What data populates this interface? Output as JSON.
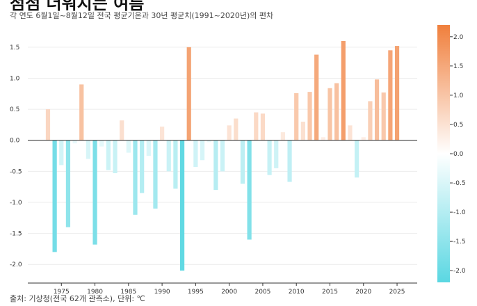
{
  "title": "점점 더워지는 여름",
  "subtitle": "각 연도 6월1일~8월12일 전국 평균기온과 30년 평균치(1991~2020년)의 편차",
  "source": "출처: 기상청(전국 62개 관측소), 단위: ℃",
  "chart_data": {
    "type": "bar",
    "title": "점점 더워지는 여름",
    "subtitle": "각 연도 6월1일~8월12일 전국 평균기온과 30년 평균치(1991~2020년)의 편차",
    "xlabel": "",
    "ylabel": "",
    "unit": "℃",
    "x": [
      1973,
      1974,
      1975,
      1976,
      1977,
      1978,
      1979,
      1980,
      1981,
      1982,
      1983,
      1984,
      1985,
      1986,
      1987,
      1988,
      1989,
      1990,
      1991,
      1992,
      1993,
      1994,
      1995,
      1996,
      1997,
      1998,
      1999,
      2000,
      2001,
      2002,
      2003,
      2004,
      2005,
      2006,
      2007,
      2008,
      2009,
      2010,
      2011,
      2012,
      2013,
      2014,
      2015,
      2016,
      2017,
      2018,
      2019,
      2020,
      2021,
      2022,
      2023,
      2024,
      2025
    ],
    "values": [
      0.5,
      -1.8,
      -0.4,
      -1.4,
      -0.05,
      0.9,
      -0.3,
      -1.68,
      -0.1,
      -0.48,
      -0.53,
      0.32,
      -0.2,
      -1.2,
      -0.85,
      -0.25,
      -1.1,
      0.22,
      -0.5,
      -0.78,
      -2.1,
      1.5,
      -0.43,
      -0.32,
      -0.03,
      -0.8,
      -0.5,
      0.24,
      0.35,
      -0.7,
      -1.6,
      0.45,
      0.43,
      -0.56,
      -0.45,
      0.13,
      -0.67,
      0.76,
      0.3,
      0.78,
      1.38,
      0.05,
      0.84,
      0.92,
      1.6,
      0.24,
      -0.6,
      0.05,
      0.63,
      0.98,
      0.77,
      1.45,
      1.52
    ],
    "ylim": [
      -2.3,
      1.7
    ],
    "xlim": [
      1970,
      2028
    ],
    "yticks": [
      1.5,
      1.0,
      0.5,
      0.0,
      -0.5,
      -1.0,
      -1.5,
      -2.0
    ],
    "ytick_labels": [
      "1.5",
      "1.0",
      "0.5",
      "0.0",
      "-0.5",
      "-1.0",
      "-1.5",
      "-2.0"
    ],
    "xticks": [
      1975,
      1980,
      1985,
      1990,
      1995,
      2000,
      2005,
      2010,
      2015,
      2020,
      2025
    ],
    "xtick_labels": [
      "1975",
      "1980",
      "1985",
      "1990",
      "1995",
      "2000",
      "2005",
      "2010",
      "2015",
      "2020",
      "2025"
    ],
    "grid": true,
    "colorbar": {
      "range": [
        -2.2,
        2.2
      ],
      "ticks": [
        2.0,
        1.5,
        1.0,
        0.5,
        0.0,
        -0.5,
        -1.0,
        -1.5,
        -2.0
      ],
      "tick_labels": [
        "2.0",
        "1.5",
        "1.0",
        "0.5",
        "0.0",
        "-0.5",
        "-1.0",
        "-1.5",
        "-2.0"
      ],
      "colors": {
        "negative": "#5ad7e2",
        "neutral": "#ffffff",
        "positive": "#f07f3c"
      }
    }
  }
}
